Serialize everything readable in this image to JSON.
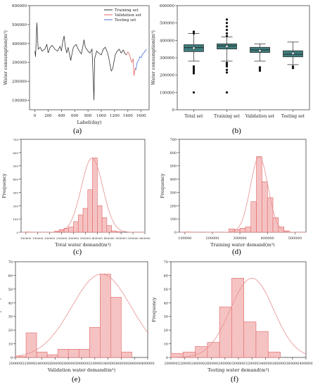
{
  "panel_labels": {
    "a": "(a)",
    "b": "(b)",
    "c": "(c)",
    "d": "(d)",
    "e": "(e)",
    "f": "(f)"
  },
  "colors": {
    "training": "#333333",
    "validation": "#e06666",
    "testing": "#4a6fdc",
    "box_fill": "#3f7d7d",
    "hist_edge": "#e06666",
    "hist_fill": "#f6c7c7",
    "fit_curve": "#e89090"
  },
  "chart_data": [
    {
      "id": "a",
      "type": "line",
      "title": "",
      "xlabel": "Label(day)",
      "ylabel": "Water consumption(m³)",
      "xlim": [
        -80,
        1720
      ],
      "ylim": [
        50000,
        600000
      ],
      "x_ticks": [
        0,
        200,
        400,
        600,
        800,
        1000,
        1200,
        1400,
        1600
      ],
      "y_ticks": [
        100000,
        200000,
        300000,
        400000,
        500000,
        600000
      ],
      "legend": [
        "Training set",
        "Validation set",
        "Testing set"
      ],
      "legend_position": "top-right",
      "series": [
        {
          "name": "Training set",
          "points": [
            [
              0,
              360000
            ],
            [
              10,
              330000
            ],
            [
              20,
              410000
            ],
            [
              30,
              510000
            ],
            [
              40,
              440000
            ],
            [
              50,
              370000
            ],
            [
              80,
              380000
            ],
            [
              110,
              360000
            ],
            [
              150,
              370000
            ],
            [
              180,
              395000
            ],
            [
              200,
              350000
            ],
            [
              230,
              380000
            ],
            [
              260,
              390000
            ],
            [
              300,
              370000
            ],
            [
              340,
              360000
            ],
            [
              380,
              385000
            ],
            [
              400,
              360000
            ],
            [
              420,
              410000
            ],
            [
              440,
              440000
            ],
            [
              460,
              380000
            ],
            [
              480,
              350000
            ],
            [
              500,
              380000
            ],
            [
              520,
              345000
            ],
            [
              540,
              310000
            ],
            [
              550,
              330000
            ],
            [
              580,
              380000
            ],
            [
              620,
              395000
            ],
            [
              660,
              365000
            ],
            [
              700,
              345000
            ],
            [
              720,
              380000
            ],
            [
              740,
              420000
            ],
            [
              760,
              380000
            ],
            [
              800,
              360000
            ],
            [
              830,
              350000
            ],
            [
              860,
              370000
            ],
            [
              880,
              200000
            ],
            [
              890,
              100000
            ],
            [
              900,
              320000
            ],
            [
              930,
              360000
            ],
            [
              960,
              350000
            ],
            [
              1000,
              340000
            ],
            [
              1030,
              370000
            ],
            [
              1060,
              380000
            ],
            [
              1090,
              355000
            ],
            [
              1110,
              330000
            ],
            [
              1130,
              290000
            ],
            [
              1150,
              255000
            ],
            [
              1170,
              265000
            ],
            [
              1190,
              300000
            ],
            [
              1210,
              340000
            ],
            [
              1240,
              360000
            ],
            [
              1270,
              370000
            ],
            [
              1300,
              350000
            ],
            [
              1330,
              365000
            ],
            [
              1360,
              345000
            ],
            [
              1380,
              340000
            ]
          ]
        },
        {
          "name": "Validation set",
          "points": [
            [
              1380,
              340000
            ],
            [
              1400,
              355000
            ],
            [
              1420,
              345000
            ],
            [
              1440,
              320000
            ],
            [
              1460,
              300000
            ],
            [
              1480,
              320000
            ],
            [
              1490,
              230000
            ],
            [
              1500,
              245000
            ],
            [
              1510,
              270000
            ],
            [
              1520,
              260000
            ]
          ]
        },
        {
          "name": "Testing set",
          "points": [
            [
              1520,
              260000
            ],
            [
              1540,
              300000
            ],
            [
              1560,
              310000
            ],
            [
              1580,
              330000
            ],
            [
              1600,
              325000
            ],
            [
              1620,
              345000
            ],
            [
              1640,
              350000
            ],
            [
              1660,
              360000
            ],
            [
              1680,
              370000
            ]
          ]
        }
      ]
    },
    {
      "id": "b",
      "type": "box",
      "title": "",
      "xlabel": "",
      "ylabel": "Water consumption(m³)",
      "ylim": [
        0,
        600000
      ],
      "y_ticks": [
        0,
        100000,
        200000,
        300000,
        400000,
        500000,
        600000
      ],
      "categories": [
        "Total set",
        "Training set",
        "Validation set",
        "Testing set"
      ],
      "boxes": [
        {
          "whisker_low": 280000,
          "q1": 335000,
          "median": 358000,
          "q3": 375000,
          "whisker_high": 440000,
          "mean": 355000,
          "outliers": [
            100000,
            210000,
            220000,
            230000,
            240000,
            250000,
            440000,
            450000
          ]
        },
        {
          "whisker_low": 280000,
          "q1": 350000,
          "median": 368000,
          "q3": 380000,
          "whisker_high": 420000,
          "mean": 365000,
          "outliers": [
            100000,
            215000,
            230000,
            250000,
            260000,
            270000,
            425000,
            440000,
            460000,
            480000,
            500000,
            520000
          ]
        },
        {
          "whisker_low": 280000,
          "q1": 330000,
          "median": 345000,
          "q3": 360000,
          "whisker_high": 380000,
          "mean": 340000,
          "outliers": [
            225000,
            235000,
            245000
          ]
        },
        {
          "whisker_low": 260000,
          "q1": 305000,
          "median": 320000,
          "q3": 340000,
          "whisker_high": 390000,
          "mean": 325000,
          "outliers": [
            240000,
            250000
          ]
        }
      ]
    },
    {
      "id": "c",
      "type": "histogram",
      "title": "",
      "xlabel": "Total water demand(m³)",
      "ylabel": "Frequency",
      "xlim": [
        80000,
        600000
      ],
      "ylim": [
        0,
        700
      ],
      "x_ticks": [
        100000,
        150000,
        200000,
        250000,
        300000,
        350000,
        400000,
        450000,
        500000,
        550000,
        600000
      ],
      "y_ticks": [
        0,
        100,
        200,
        300,
        400,
        500,
        600,
        700
      ],
      "bin_width": 20000,
      "bins": [
        [
          100000,
          2
        ],
        [
          220000,
          8
        ],
        [
          240000,
          20
        ],
        [
          260000,
          30
        ],
        [
          280000,
          40
        ],
        [
          300000,
          80
        ],
        [
          320000,
          130
        ],
        [
          340000,
          180
        ],
        [
          360000,
          320
        ],
        [
          380000,
          560
        ],
        [
          400000,
          200
        ],
        [
          420000,
          110
        ],
        [
          440000,
          50
        ],
        [
          460000,
          10
        ],
        [
          480000,
          4
        ]
      ],
      "fit": {
        "mean": 378000,
        "sd": 45000,
        "peak": 560
      }
    },
    {
      "id": "d",
      "type": "histogram",
      "title": "",
      "xlabel": "Training water demand(m³)",
      "ylabel": "Frequency",
      "xlim": [
        80000,
        540000
      ],
      "ylim": [
        0,
        700
      ],
      "x_ticks": [
        100000,
        200000,
        300000,
        400000,
        500000
      ],
      "y_ticks": [
        0,
        100,
        200,
        300,
        400,
        500,
        600,
        700
      ],
      "bin_width": 20000,
      "bins": [
        [
          100000,
          2
        ],
        [
          260000,
          25
        ],
        [
          280000,
          20
        ],
        [
          300000,
          30
        ],
        [
          320000,
          40
        ],
        [
          340000,
          230
        ],
        [
          360000,
          570
        ],
        [
          380000,
          380
        ],
        [
          400000,
          260
        ],
        [
          420000,
          110
        ],
        [
          440000,
          40
        ],
        [
          460000,
          10
        ]
      ],
      "fit": {
        "mean": 370000,
        "sd": 32000,
        "peak": 570
      }
    },
    {
      "id": "e",
      "type": "histogram",
      "title": "",
      "xlabel": "Validation water demand(m³)",
      "ylabel": "Frequency",
      "xlim": [
        200000,
        400000
      ],
      "ylim": [
        0,
        70
      ],
      "x_ticks": [
        200000,
        220000,
        240000,
        260000,
        280000,
        300000,
        320000,
        340000,
        360000,
        380000,
        400000
      ],
      "y_ticks": [
        0,
        10,
        20,
        30,
        40,
        50,
        60,
        70
      ],
      "bin_width": 16000,
      "bins": [
        [
          200000,
          1
        ],
        [
          216000,
          18
        ],
        [
          232000,
          4
        ],
        [
          248000,
          2
        ],
        [
          264000,
          6
        ],
        [
          280000,
          6
        ],
        [
          296000,
          6
        ],
        [
          312000,
          22
        ],
        [
          328000,
          61
        ],
        [
          344000,
          44
        ],
        [
          360000,
          4
        ]
      ],
      "fit": {
        "mean": 330000,
        "sd": 45000,
        "peak": 61
      }
    },
    {
      "id": "f",
      "type": "histogram",
      "title": "",
      "xlabel": "Testing water demand(m³)",
      "ylabel": "Frequency",
      "xlim": [
        200000,
        400000
      ],
      "ylim": [
        0,
        70
      ],
      "x_ticks": [
        200000,
        220000,
        240000,
        260000,
        280000,
        300000,
        320000,
        340000,
        360000,
        380000,
        400000
      ],
      "y_ticks": [
        0,
        10,
        20,
        30,
        40,
        50,
        60,
        70
      ],
      "bin_width": 18000,
      "bins": [
        [
          200000,
          3
        ],
        [
          218000,
          4
        ],
        [
          236000,
          8
        ],
        [
          254000,
          11
        ],
        [
          272000,
          37
        ],
        [
          290000,
          58
        ],
        [
          308000,
          26
        ],
        [
          326000,
          19
        ],
        [
          344000,
          4
        ]
      ],
      "fit": {
        "mean": 320000,
        "sd": 32000,
        "peak": 58
      }
    }
  ]
}
